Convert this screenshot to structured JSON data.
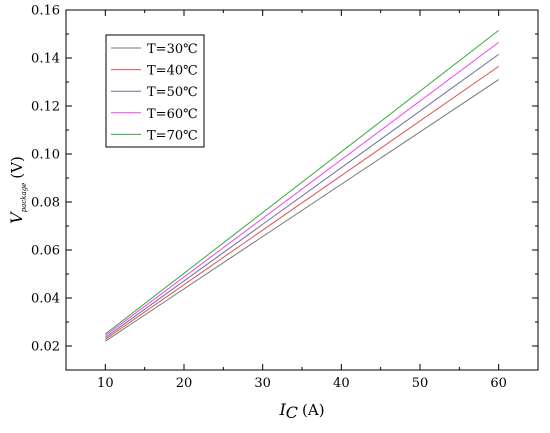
{
  "chart_data": {
    "type": "line",
    "title": "",
    "x_label": {
      "symbol": "I",
      "subscript": "C",
      "unit": "(A)"
    },
    "y_label": {
      "symbol": "V",
      "subscript": "package",
      "unit": "(V)"
    },
    "x": [
      10,
      60
    ],
    "xlim": [
      5,
      65
    ],
    "ylim": [
      0.01,
      0.16
    ],
    "x_ticks": [
      "10",
      "20",
      "30",
      "40",
      "50",
      "60"
    ],
    "y_ticks": [
      "0.02",
      "0.04",
      "0.06",
      "0.08",
      "0.10",
      "0.12",
      "0.14",
      "0.16"
    ],
    "grid": false,
    "legend_position": "top-left",
    "series": [
      {
        "name": "T=30℃",
        "color": "#777777",
        "values": [
          0.022,
          0.131
        ]
      },
      {
        "name": "T=40℃",
        "color": "#e05050",
        "values": [
          0.0228,
          0.1365
        ]
      },
      {
        "name": "T=50℃",
        "color": "#6b6b9e",
        "values": [
          0.0235,
          0.1415
        ]
      },
      {
        "name": "T=60℃",
        "color": "#ee44ee",
        "values": [
          0.0243,
          0.1465
        ]
      },
      {
        "name": "T=70℃",
        "color": "#33aa33",
        "values": [
          0.025,
          0.1515
        ]
      }
    ]
  }
}
